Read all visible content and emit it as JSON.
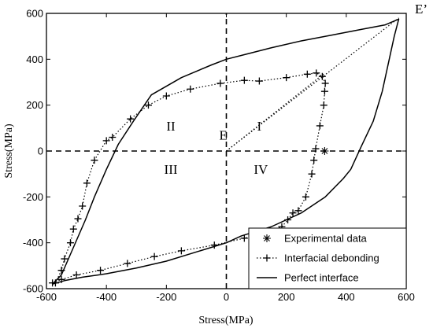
{
  "chart_data": {
    "type": "line",
    "title": "",
    "xlabel": "Stress(MPa)",
    "ylabel": "Stress(MPa)",
    "xlim": [
      -600,
      600
    ],
    "ylim": [
      -600,
      600
    ],
    "xticks": [
      "-600",
      "-400",
      "-200",
      "0",
      "200",
      "400",
      "600"
    ],
    "yticks": [
      "-600",
      "-400",
      "-200",
      "0",
      "200",
      "400",
      "600"
    ],
    "grid": false,
    "legend_position": "bottom-right",
    "point_labels": [
      {
        "text": "E",
        "x": -10,
        "y": 50
      },
      {
        "text": "E’",
        "x": 650,
        "y": 600
      }
    ],
    "region_labels": [
      {
        "text": "I",
        "x": 110,
        "y": 90
      },
      {
        "text": "II",
        "x": -185,
        "y": 90
      },
      {
        "text": "III",
        "x": -185,
        "y": -100
      },
      {
        "text": "IV",
        "x": 115,
        "y": -100
      }
    ],
    "series": [
      {
        "name": "Experimental data",
        "style": "star",
        "x": [
          328
        ],
        "y": [
          0
        ]
      },
      {
        "name": "Interfacial debonding",
        "style": "dotted-plus",
        "x": [
          -570,
          -550,
          -540,
          -520,
          -510,
          -495,
          -480,
          -465,
          -440,
          -400,
          -380,
          -320,
          -260,
          -200,
          -120,
          -20,
          60,
          110,
          200,
          270,
          300,
          320,
          330,
          328,
          325,
          312,
          298,
          292,
          285,
          265,
          240,
          222,
          205,
          185,
          140,
          60,
          -40,
          -150,
          -240,
          -330,
          -420,
          -500,
          -550,
          -580
        ],
        "y": [
          -575,
          -520,
          -470,
          -400,
          -340,
          -295,
          -240,
          -140,
          -40,
          45,
          60,
          140,
          200,
          240,
          270,
          295,
          308,
          305,
          320,
          335,
          340,
          325,
          295,
          260,
          200,
          110,
          10,
          -40,
          -100,
          -200,
          -260,
          -270,
          -300,
          -330,
          -350,
          -380,
          -410,
          -435,
          -460,
          -490,
          -520,
          -540,
          -560,
          -575
        ]
      },
      {
        "name": "Perfect interface",
        "style": "solid",
        "x": [
          -580,
          -550,
          -510,
          -470,
          -440,
          -400,
          -360,
          -310,
          -250,
          -150,
          -50,
          0,
          60,
          150,
          250,
          350,
          450,
          530,
          575,
          560,
          540,
          520,
          490,
          450,
          415,
          390,
          330,
          250,
          150,
          50,
          0,
          -100,
          -200,
          -300,
          -400,
          -480,
          -540,
          -580
        ],
        "y": [
          -580,
          -540,
          -420,
          -300,
          -200,
          -80,
          30,
          130,
          245,
          320,
          375,
          400,
          420,
          450,
          480,
          505,
          530,
          550,
          575,
          500,
          380,
          260,
          130,
          20,
          -80,
          -120,
          -200,
          -270,
          -330,
          -370,
          -400,
          -440,
          -480,
          -510,
          -535,
          -550,
          -565,
          -580
        ]
      }
    ],
    "reference_lines": [
      {
        "from": [
          0,
          0
        ],
        "to": [
          575,
          580
        ],
        "style": "dotted"
      },
      {
        "from": [
          0,
          0
        ],
        "to": [
          328,
          340
        ],
        "style": "dotted"
      },
      {
        "from": [
          0,
          -600
        ],
        "to": [
          0,
          600
        ],
        "style": "dashed"
      },
      {
        "from": [
          -600,
          0
        ],
        "to": [
          600,
          0
        ],
        "style": "dashed"
      }
    ]
  }
}
